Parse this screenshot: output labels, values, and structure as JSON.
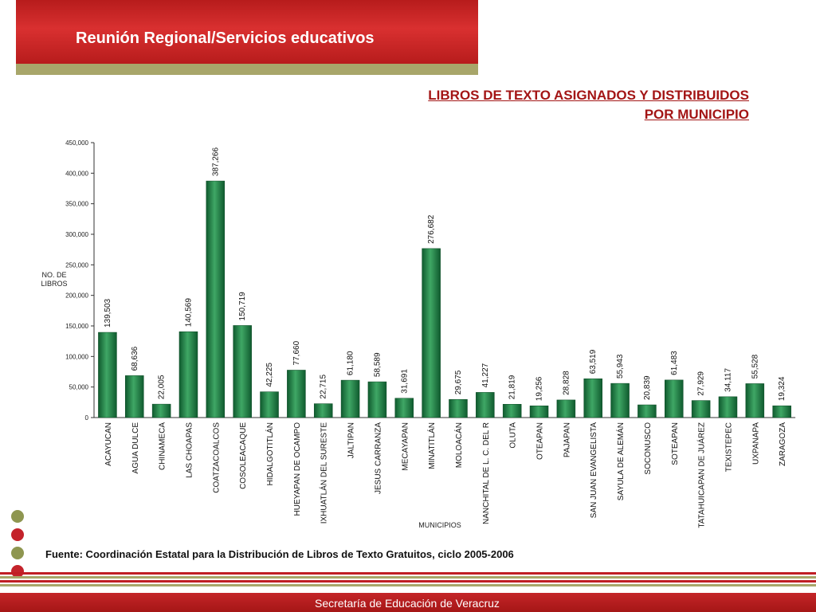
{
  "header": {
    "title": "Reunión Regional/Servicios educativos"
  },
  "chart_title": {
    "line1": "LIBROS DE TEXTO ASIGNADOS Y DISTRIBUIDOS",
    "line2": "POR MUNICIPIO"
  },
  "source": "Fuente: Coordinación Estatal para la Distribución de Libros de Texto Gratuitos, ciclo 2005-2006",
  "footer": {
    "text": "Secretaría de Educación de Veracruz"
  },
  "colors": {
    "header_red": "#c62828",
    "olive": "#a8a66a",
    "bar_green": "#1f8a4c",
    "title_red": "#a31515"
  },
  "chart_data": {
    "type": "bar",
    "ylabel": "NO. DE LIBROS",
    "xlabel": "MUNICIPIOS",
    "ylim": [
      0,
      450000
    ],
    "yticks": [
      "0",
      "50,000",
      "100,000",
      "150,000",
      "200,000",
      "250,000",
      "300,000",
      "350,000",
      "400,000",
      "450,000"
    ],
    "grid": false,
    "categories": [
      "ACAYUCAN",
      "AGUA DULCE",
      "CHINAMECA",
      "LAS CHOAPAS",
      "COATZACOALCOS",
      "COSOLEACAQUE",
      "HIDALGOTITLÁN",
      "HUEYAPAN DE OCAMPO",
      "IXHUATLÁN DEL SURESTE",
      "JALTIPAN",
      "JESUS CARRANZA",
      "MECAYAPAN",
      "MINATITLÁN",
      "MOLOACÁN",
      "NANCHITAL DE L. C. DEL R",
      "OLUTA",
      "OTEAPAN",
      "PAJAPAN",
      "SAN JUAN EVANGELISTA",
      "SAYULA DE ALEMÁN",
      "SOCONUSCO",
      "SOTEAPAN",
      "TATAHUICAPAN DE JUÁREZ",
      "TEXISTEPEC",
      "UXPANAPA",
      "ZARAGOZA"
    ],
    "values": [
      139503,
      68636,
      22005,
      140569,
      387266,
      150719,
      42225,
      77660,
      22715,
      61180,
      58589,
      31691,
      276682,
      29675,
      41227,
      21819,
      19256,
      28828,
      63519,
      55943,
      20839,
      61483,
      27929,
      34117,
      55528,
      19324
    ],
    "value_labels": [
      "139,503",
      "68,636",
      "22,005",
      "140,569",
      "387,266",
      "150,719",
      "42,225",
      "77,660",
      "22,715",
      "61,180",
      "58,589",
      "31,691",
      "276,682",
      "29,675",
      "41,227",
      "21,819",
      "19,256",
      "28,828",
      "63,519",
      "55,943",
      "20,839",
      "61,483",
      "27,929",
      "34,117",
      "55,528",
      "19,324"
    ]
  }
}
